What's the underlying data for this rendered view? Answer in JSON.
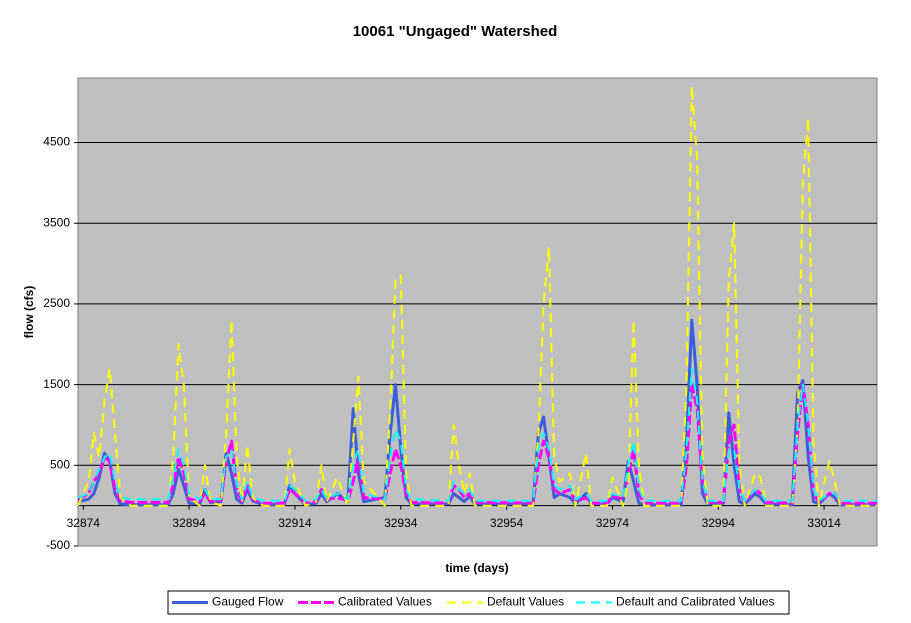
{
  "chart_data": {
    "type": "line",
    "title": "10061 \"Ungaged\" Watershed",
    "x_label": "time (days)",
    "y_label": "flow (cfs)",
    "xlim": [
      32873,
      33024
    ],
    "ylim": [
      -500,
      5300
    ],
    "xticks": [
      32874,
      32894,
      32914,
      32934,
      32954,
      32974,
      32994,
      33014
    ],
    "yticks": [
      -500,
      500,
      1500,
      2500,
      3500,
      4500
    ],
    "grid": true,
    "legend": "bottom",
    "background": "#c0c0c0",
    "x": [
      32873,
      32875,
      32876,
      32877,
      32878,
      32879,
      32880,
      32881,
      32883,
      32890,
      32891,
      32892,
      32893,
      32894,
      32896,
      32897,
      32898,
      32900,
      32901,
      32902,
      32903,
      32904,
      32905,
      32906,
      32908,
      32912,
      32913,
      32914,
      32916,
      32918,
      32919,
      32920,
      32922,
      32924,
      32925,
      32926,
      32927,
      32931,
      32932,
      32933,
      32934,
      32935,
      32936,
      32943,
      32944,
      32945,
      32946,
      32947,
      32948,
      32959,
      32960,
      32961,
      32962,
      32963,
      32964,
      32966,
      32967,
      32969,
      32970,
      32973,
      32974,
      32976,
      32977,
      32978,
      32979,
      32980,
      32987,
      32988,
      32989,
      32990,
      32991,
      32992,
      32995,
      32996,
      32997,
      32998,
      32999,
      33001,
      33002,
      33003,
      33008,
      33009,
      33010,
      33011,
      33012,
      33013,
      33015,
      33016,
      33017,
      33024
    ],
    "series": [
      {
        "name": "Gauged Flow",
        "color": "#3a5fd6",
        "style": "solid",
        "values": [
          50,
          80,
          150,
          350,
          650,
          550,
          150,
          20,
          10,
          10,
          150,
          450,
          250,
          30,
          20,
          200,
          40,
          50,
          650,
          400,
          80,
          30,
          200,
          60,
          10,
          20,
          250,
          150,
          10,
          30,
          150,
          50,
          150,
          50,
          1200,
          400,
          50,
          100,
          900,
          1500,
          700,
          100,
          20,
          20,
          150,
          100,
          50,
          120,
          20,
          20,
          900,
          1100,
          600,
          100,
          150,
          100,
          20,
          150,
          20,
          20,
          100,
          50,
          550,
          300,
          30,
          10,
          10,
          800,
          2300,
          1500,
          150,
          20,
          30,
          1150,
          500,
          50,
          20,
          150,
          100,
          20,
          10,
          1400,
          1550,
          600,
          50,
          20,
          150,
          100,
          10,
          10
        ]
      },
      {
        "name": "Calibrated Values",
        "color": "#ff00ff",
        "style": "longdash",
        "values": [
          80,
          150,
          300,
          400,
          600,
          550,
          200,
          60,
          40,
          40,
          250,
          600,
          400,
          80,
          60,
          150,
          50,
          60,
          550,
          800,
          200,
          50,
          250,
          80,
          30,
          30,
          200,
          150,
          30,
          50,
          200,
          80,
          100,
          60,
          300,
          600,
          100,
          80,
          400,
          700,
          500,
          150,
          40,
          30,
          250,
          200,
          100,
          150,
          40,
          30,
          500,
          800,
          600,
          200,
          150,
          200,
          50,
          100,
          30,
          30,
          120,
          80,
          400,
          700,
          150,
          30,
          30,
          500,
          1500,
          1200,
          300,
          40,
          40,
          800,
          1000,
          200,
          40,
          200,
          150,
          40,
          30,
          900,
          1500,
          1000,
          150,
          40,
          150,
          150,
          30,
          30
        ]
      },
      {
        "name": "Default Values",
        "color": "#ffff00",
        "style": "dashed",
        "values": [
          0,
          300,
          900,
          600,
          1300,
          1700,
          900,
          100,
          0,
          0,
          600,
          2000,
          1500,
          100,
          0,
          500,
          50,
          0,
          900,
          2300,
          600,
          50,
          750,
          100,
          0,
          0,
          700,
          300,
          0,
          50,
          500,
          50,
          350,
          0,
          800,
          1600,
          300,
          0,
          1200,
          2800,
          2850,
          400,
          0,
          0,
          1000,
          500,
          150,
          400,
          0,
          0,
          900,
          2500,
          3200,
          600,
          300,
          400,
          0,
          650,
          0,
          0,
          350,
          0,
          300,
          2300,
          500,
          0,
          0,
          1500,
          5200,
          4300,
          600,
          0,
          0,
          2800,
          3500,
          500,
          0,
          400,
          350,
          0,
          0,
          1000,
          4000,
          4800,
          800,
          0,
          550,
          300,
          0,
          0
        ]
      },
      {
        "name": "Default and Calibrated Values",
        "color": "#00ffff",
        "style": "dashed",
        "values": [
          100,
          150,
          300,
          450,
          600,
          650,
          300,
          100,
          80,
          80,
          350,
          700,
          500,
          150,
          80,
          200,
          80,
          80,
          600,
          700,
          250,
          80,
          300,
          100,
          60,
          60,
          250,
          200,
          60,
          80,
          200,
          80,
          150,
          80,
          500,
          700,
          150,
          80,
          600,
          950,
          800,
          200,
          80,
          60,
          300,
          200,
          150,
          200,
          60,
          60,
          700,
          900,
          700,
          250,
          200,
          250,
          80,
          150,
          60,
          60,
          150,
          100,
          500,
          800,
          200,
          60,
          60,
          700,
          1700,
          1300,
          300,
          60,
          60,
          700,
          700,
          200,
          60,
          200,
          150,
          60,
          60,
          1000,
          1500,
          1000,
          200,
          60,
          150,
          150,
          60,
          60
        ]
      }
    ]
  }
}
